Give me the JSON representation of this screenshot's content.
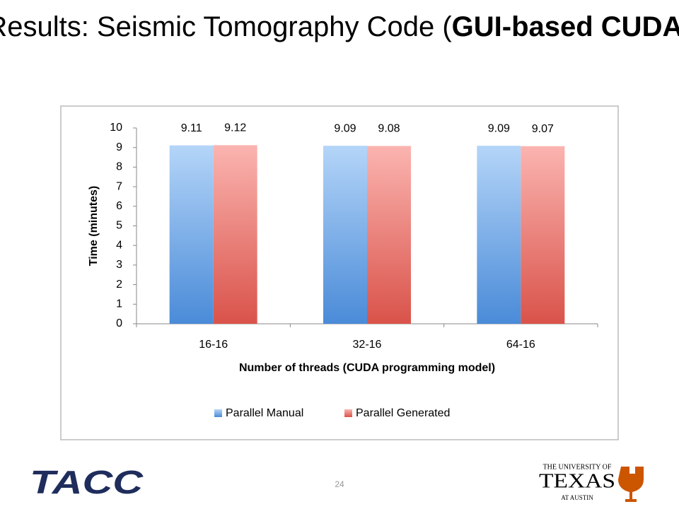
{
  "slide": {
    "title_start": "Results: Seismic Tomography Code (",
    "title_bold": "GUI-based CUDA",
    "title_end": ")",
    "page_number": "24",
    "logo_left": "TACC",
    "logo_right_top": "THE UNIVERSITY OF",
    "logo_right_main": "TEXAS",
    "logo_right_bottom": "AT AUSTIN"
  },
  "chart_data": {
    "type": "bar",
    "x_label": "Number of threads (CUDA programming model)",
    "y_label": "Time (minutes)",
    "categories": [
      "16-16",
      "32-16",
      "64-16"
    ],
    "series": [
      {
        "name": "Parallel Manual",
        "gradient": [
          "#b4d5f8",
          "#4a8bd8"
        ],
        "values": [
          9.11,
          9.09,
          9.09
        ]
      },
      {
        "name": "Parallel Generated",
        "gradient": [
          "#fbb4b0",
          "#d9534a"
        ],
        "values": [
          9.12,
          9.08,
          9.07
        ]
      }
    ],
    "ylim": [
      0,
      10
    ],
    "yticks": [
      0,
      1,
      2,
      3,
      4,
      5,
      6,
      7,
      8,
      9,
      10
    ],
    "legend": "bottom"
  }
}
